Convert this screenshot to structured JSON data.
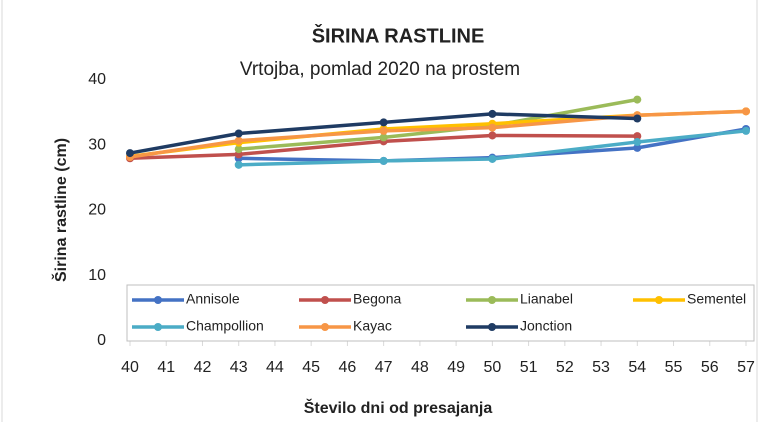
{
  "chart_data": {
    "type": "line",
    "title": "ŠIRINA RASTLINE",
    "subtitle": "Vrtojba, pomlad 2020 na prostem",
    "x_label": "Število dni od presajanja",
    "y_label": "Širina rastline (cm)",
    "x": [
      40,
      43,
      47,
      50,
      54,
      57
    ],
    "series": [
      {
        "name": "Annisole",
        "color": "#4472c4",
        "values": [
          null,
          28,
          27.6,
          28.1,
          29.6,
          32.5
        ]
      },
      {
        "name": "Begona",
        "color": "#c0504d",
        "values": [
          28,
          28.6,
          30.6,
          31.5,
          31.4,
          null
        ]
      },
      {
        "name": "Lianabel",
        "color": "#9bbb59",
        "values": [
          null,
          29.4,
          31.2,
          33,
          37,
          null
        ]
      },
      {
        "name": "Sementel",
        "color": "#ffc000",
        "values": [
          28.3,
          30.4,
          32.5,
          33.3,
          34.6,
          35.2
        ]
      },
      {
        "name": "Champollion",
        "color": "#4bacc6",
        "values": [
          null,
          27,
          27.6,
          27.9,
          30.5,
          32.2
        ]
      },
      {
        "name": "Kayac",
        "color": "#f79646",
        "values": [
          28.2,
          30.7,
          32.2,
          32.7,
          34.6,
          35.2
        ]
      },
      {
        "name": "Jonction",
        "color": "#1f3b63",
        "values": [
          28.8,
          31.8,
          33.5,
          34.8,
          34.1,
          null
        ]
      }
    ],
    "xlim": [
      40,
      57
    ],
    "xticks": [
      40,
      41,
      42,
      43,
      44,
      45,
      46,
      47,
      48,
      49,
      50,
      51,
      52,
      53,
      54,
      55,
      56,
      57
    ],
    "ylim": [
      0,
      40
    ],
    "yticks": [
      0,
      10,
      20,
      30,
      40
    ],
    "grid": false,
    "legend": "bottom"
  }
}
